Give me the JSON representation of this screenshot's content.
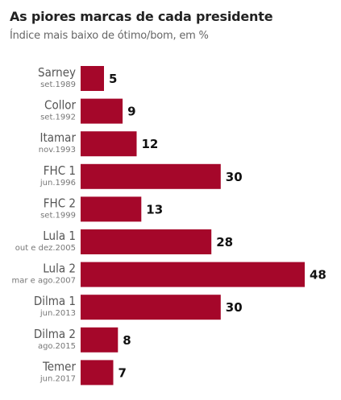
{
  "chart_data": {
    "type": "bar",
    "orientation": "horizontal",
    "title": "As piores marcas de cada presidente",
    "subtitle": "Índice mais baixo de ótimo/bom, em %",
    "categories": [
      {
        "name": "Sarney",
        "date": "set.1989"
      },
      {
        "name": "Collor",
        "date": "set.1992"
      },
      {
        "name": "Itamar",
        "date": "nov.1993"
      },
      {
        "name": "FHC 1",
        "date": "jun.1996"
      },
      {
        "name": "FHC 2",
        "date": "set.1999"
      },
      {
        "name": "Lula 1",
        "date": "out e dez.2005"
      },
      {
        "name": "Lula 2",
        "date": "mar e ago.2007"
      },
      {
        "name": "Dilma 1",
        "date": "jun.2013"
      },
      {
        "name": "Dilma 2",
        "date": "ago.2015"
      },
      {
        "name": "Temer",
        "date": "jun.2017"
      }
    ],
    "values": [
      5,
      9,
      12,
      30,
      13,
      28,
      48,
      30,
      8,
      7
    ],
    "xlim": [
      0,
      48
    ],
    "bar_color": "#a5072a",
    "grid": false,
    "legend": "none"
  }
}
